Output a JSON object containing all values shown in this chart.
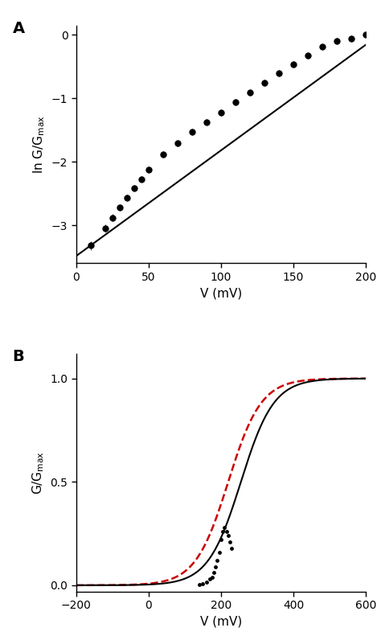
{
  "panel_A": {
    "xlabel": "V (mV)",
    "ylabel": "ln G/G_max",
    "xlim": [
      0,
      200
    ],
    "ylim": [
      -3.6,
      0.15
    ],
    "yticks": [
      0,
      -1,
      -2,
      -3
    ],
    "xticks": [
      0,
      50,
      100,
      150,
      200
    ],
    "data_x": [
      10,
      20,
      25,
      30,
      35,
      40,
      45,
      50,
      60,
      70,
      80,
      90,
      100,
      110,
      120,
      130,
      140,
      150,
      160,
      170,
      180,
      190,
      200
    ],
    "data_y": [
      -3.32,
      -3.05,
      -2.88,
      -2.72,
      -2.57,
      -2.42,
      -2.27,
      -2.12,
      -1.88,
      -1.7,
      -1.53,
      -1.37,
      -1.22,
      -1.06,
      -0.91,
      -0.76,
      -0.6,
      -0.46,
      -0.32,
      -0.19,
      -0.1,
      -0.06,
      0.0
    ],
    "yerr": [
      0.07,
      0.06,
      0.06,
      0.05,
      0.05,
      0.05,
      0.05,
      0.05,
      0.05,
      0.05,
      0.05,
      0.05,
      0.05,
      0.05,
      0.05,
      0.05,
      0.05,
      0.05,
      0.05,
      0.05,
      0.05,
      0.05,
      0.04
    ],
    "fit_slope": 0.01665,
    "fit_intercept": -3.485,
    "label": "A"
  },
  "panel_B": {
    "xlabel": "V (mV)",
    "ylabel": "G/G_max",
    "xlim": [
      -200,
      600
    ],
    "ylim": [
      -0.03,
      1.12
    ],
    "yticks": [
      0.0,
      0.5,
      1.0
    ],
    "xticks": [
      -200,
      0,
      200,
      400,
      600
    ],
    "data_x": [
      140,
      150,
      160,
      170,
      175,
      180,
      185,
      190,
      195,
      200,
      205,
      210,
      215,
      220,
      225,
      230
    ],
    "data_y": [
      0.005,
      0.008,
      0.015,
      0.03,
      0.04,
      0.06,
      0.09,
      0.12,
      0.16,
      0.22,
      0.26,
      0.28,
      0.26,
      0.24,
      0.21,
      0.18
    ],
    "black_line_V0": 255,
    "black_line_k": 0.022,
    "red_line_V0": 220,
    "red_line_k": 0.022,
    "label": "B"
  },
  "marker_color": "#000000",
  "line_color": "#000000",
  "red_color": "#cc0000",
  "marker_size": 5,
  "line_width": 1.5
}
